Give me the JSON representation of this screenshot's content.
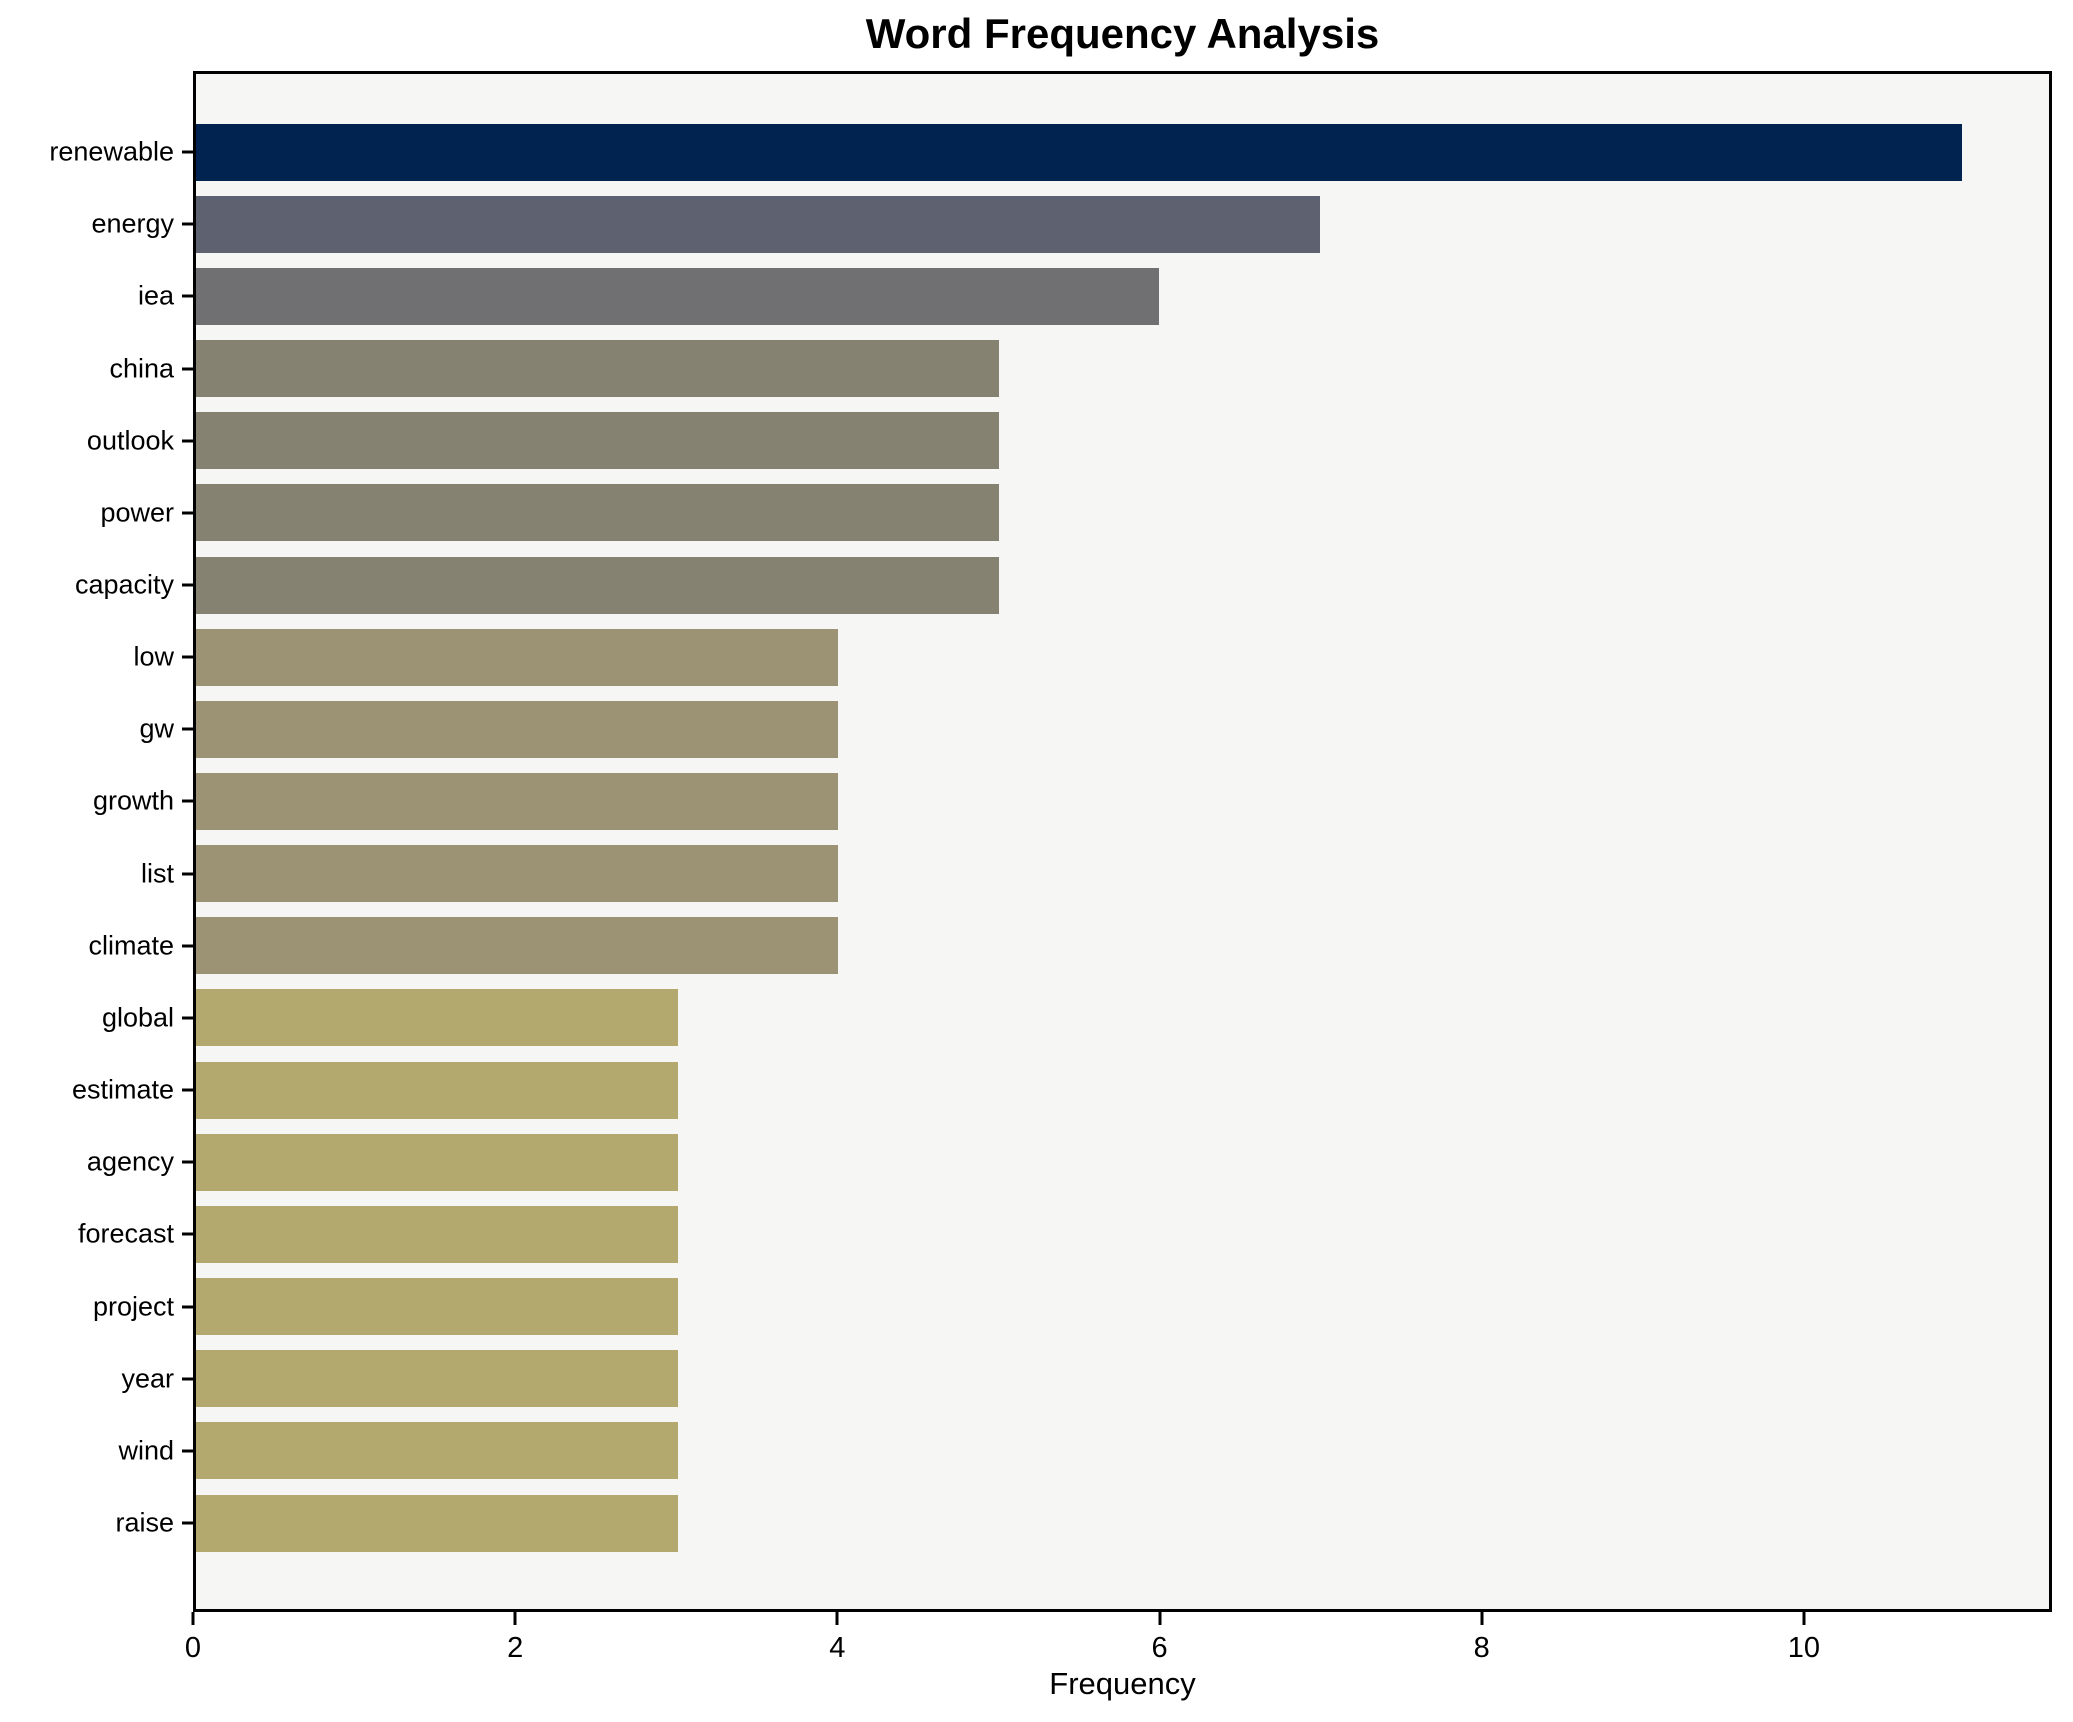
{
  "title": "Word Frequency Analysis",
  "axis": {
    "xlabel": "Frequency",
    "xtick_labels": [
      "0",
      "2",
      "4",
      "6",
      "8",
      "10"
    ]
  },
  "colors": {
    "page_bg": "#ffffff",
    "plot_bg": "#f6f6f5",
    "spine": "#000000",
    "text": "#000000"
  },
  "chart_data": {
    "type": "bar",
    "orientation": "horizontal",
    "title": "Word Frequency Analysis",
    "xlabel": "Frequency",
    "ylabel": "",
    "xlim": [
      0,
      11.54
    ],
    "xticks": [
      0,
      2,
      4,
      6,
      8,
      10
    ],
    "grid": false,
    "legend": false,
    "categories": [
      "renewable",
      "energy",
      "iea",
      "china",
      "outlook",
      "power",
      "capacity",
      "low",
      "gw",
      "growth",
      "list",
      "climate",
      "global",
      "estimate",
      "agency",
      "forecast",
      "project",
      "year",
      "wind",
      "raise"
    ],
    "values": [
      11,
      7,
      6,
      5,
      5,
      5,
      5,
      4,
      4,
      4,
      4,
      4,
      3,
      3,
      3,
      3,
      3,
      3,
      3,
      3
    ],
    "bar_colors": [
      "#002350",
      "#5d6170",
      "#707073",
      "#858272",
      "#858272",
      "#858272",
      "#858272",
      "#9b9374",
      "#9b9374",
      "#9b9374",
      "#9b9374",
      "#9b9374",
      "#b3a96e",
      "#b3a96e",
      "#b3a96e",
      "#b3a96e",
      "#b3a96e",
      "#b3a96e",
      "#b3a96e",
      "#b3a96e"
    ]
  }
}
